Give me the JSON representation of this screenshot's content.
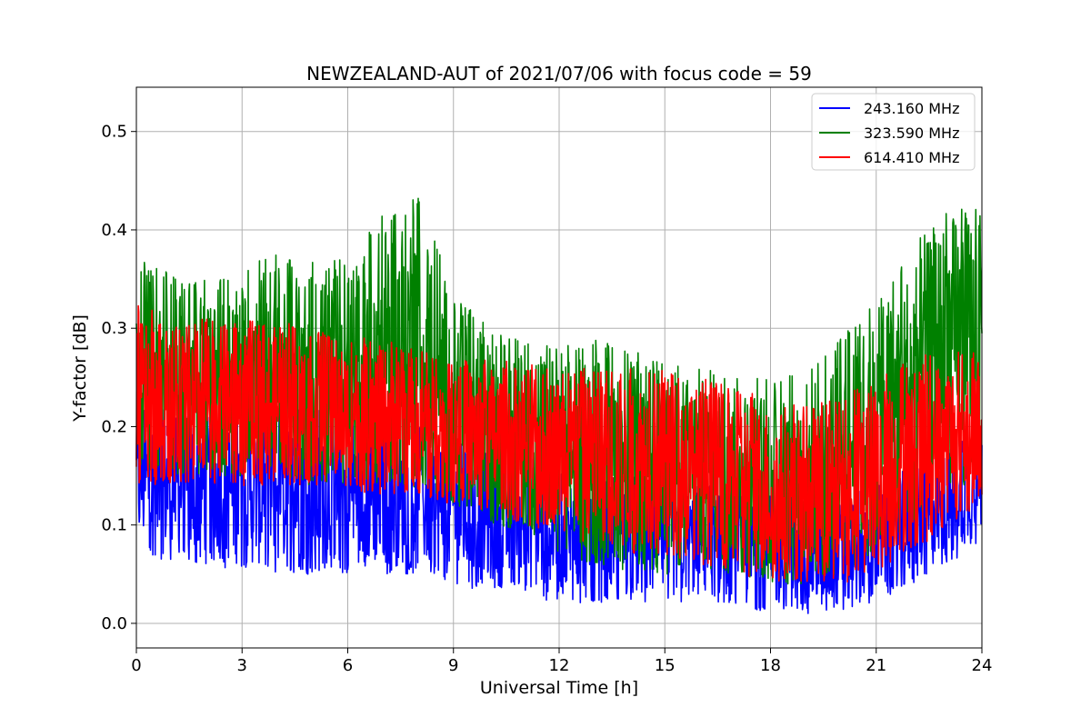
{
  "chart_data": {
    "type": "line",
    "title": "NEWZEALAND-AUT of 2021/07/06 with focus code = 59",
    "xlabel": "Universal Time [h]",
    "ylabel": "Y-factor [dB]",
    "xlim": [
      0,
      24
    ],
    "ylim": [
      -0.025,
      0.545
    ],
    "xticks": [
      0,
      3,
      6,
      9,
      12,
      15,
      18,
      21,
      24
    ],
    "yticks": [
      0.0,
      0.1,
      0.2,
      0.3,
      0.4,
      0.5
    ],
    "ytick_labels": [
      "0.0",
      "0.1",
      "0.2",
      "0.3",
      "0.4",
      "0.5"
    ],
    "grid": true,
    "legend_position": "top-right",
    "series": [
      {
        "name": "243.160 MHz",
        "color": "#0000ff",
        "x": [
          0,
          1,
          2,
          3,
          4,
          5,
          6,
          7,
          8,
          9,
          10,
          11,
          12,
          13,
          14,
          15,
          16,
          17,
          18,
          19,
          20,
          21,
          22,
          23,
          24
        ],
        "lower": [
          0.07,
          0.06,
          0.06,
          0.05,
          0.05,
          0.05,
          0.05,
          0.05,
          0.05,
          0.04,
          0.03,
          0.03,
          0.02,
          0.02,
          0.02,
          0.02,
          0.02,
          0.02,
          0.01,
          0.01,
          0.01,
          0.02,
          0.04,
          0.06,
          0.08
        ],
        "upper": [
          0.22,
          0.22,
          0.22,
          0.22,
          0.22,
          0.22,
          0.21,
          0.21,
          0.2,
          0.19,
          0.18,
          0.17,
          0.16,
          0.16,
          0.15,
          0.15,
          0.14,
          0.14,
          0.13,
          0.13,
          0.13,
          0.14,
          0.16,
          0.18,
          0.2
        ]
      },
      {
        "name": "323.590 MHz",
        "color": "#008000",
        "x": [
          0,
          1,
          2,
          3,
          4,
          5,
          6,
          7,
          8,
          9,
          10,
          11,
          12,
          13,
          14,
          15,
          16,
          17,
          18,
          19,
          20,
          21,
          22,
          23,
          24
        ],
        "lower": [
          0.16,
          0.15,
          0.15,
          0.15,
          0.15,
          0.14,
          0.14,
          0.14,
          0.13,
          0.12,
          0.1,
          0.09,
          0.07,
          0.06,
          0.05,
          0.05,
          0.05,
          0.05,
          0.04,
          0.04,
          0.05,
          0.07,
          0.1,
          0.13,
          0.15
        ],
        "upper": [
          0.37,
          0.36,
          0.35,
          0.36,
          0.38,
          0.37,
          0.37,
          0.42,
          0.44,
          0.34,
          0.3,
          0.29,
          0.28,
          0.29,
          0.28,
          0.27,
          0.26,
          0.25,
          0.25,
          0.26,
          0.29,
          0.33,
          0.38,
          0.43,
          0.43
        ]
      },
      {
        "name": "614.410 MHz",
        "color": "#ff0000",
        "x": [
          0,
          1,
          2,
          3,
          4,
          5,
          6,
          7,
          8,
          9,
          10,
          11,
          12,
          13,
          14,
          15,
          16,
          17,
          18,
          19,
          20,
          21,
          22,
          23,
          24
        ],
        "lower": [
          0.14,
          0.14,
          0.14,
          0.14,
          0.14,
          0.14,
          0.13,
          0.13,
          0.13,
          0.12,
          0.11,
          0.1,
          0.09,
          0.08,
          0.07,
          0.07,
          0.06,
          0.05,
          0.04,
          0.04,
          0.04,
          0.05,
          0.07,
          0.1,
          0.12
        ],
        "upper": [
          0.33,
          0.31,
          0.31,
          0.31,
          0.31,
          0.3,
          0.29,
          0.29,
          0.28,
          0.27,
          0.27,
          0.27,
          0.26,
          0.26,
          0.26,
          0.26,
          0.25,
          0.24,
          0.23,
          0.22,
          0.23,
          0.25,
          0.27,
          0.28,
          0.28
        ]
      }
    ]
  }
}
